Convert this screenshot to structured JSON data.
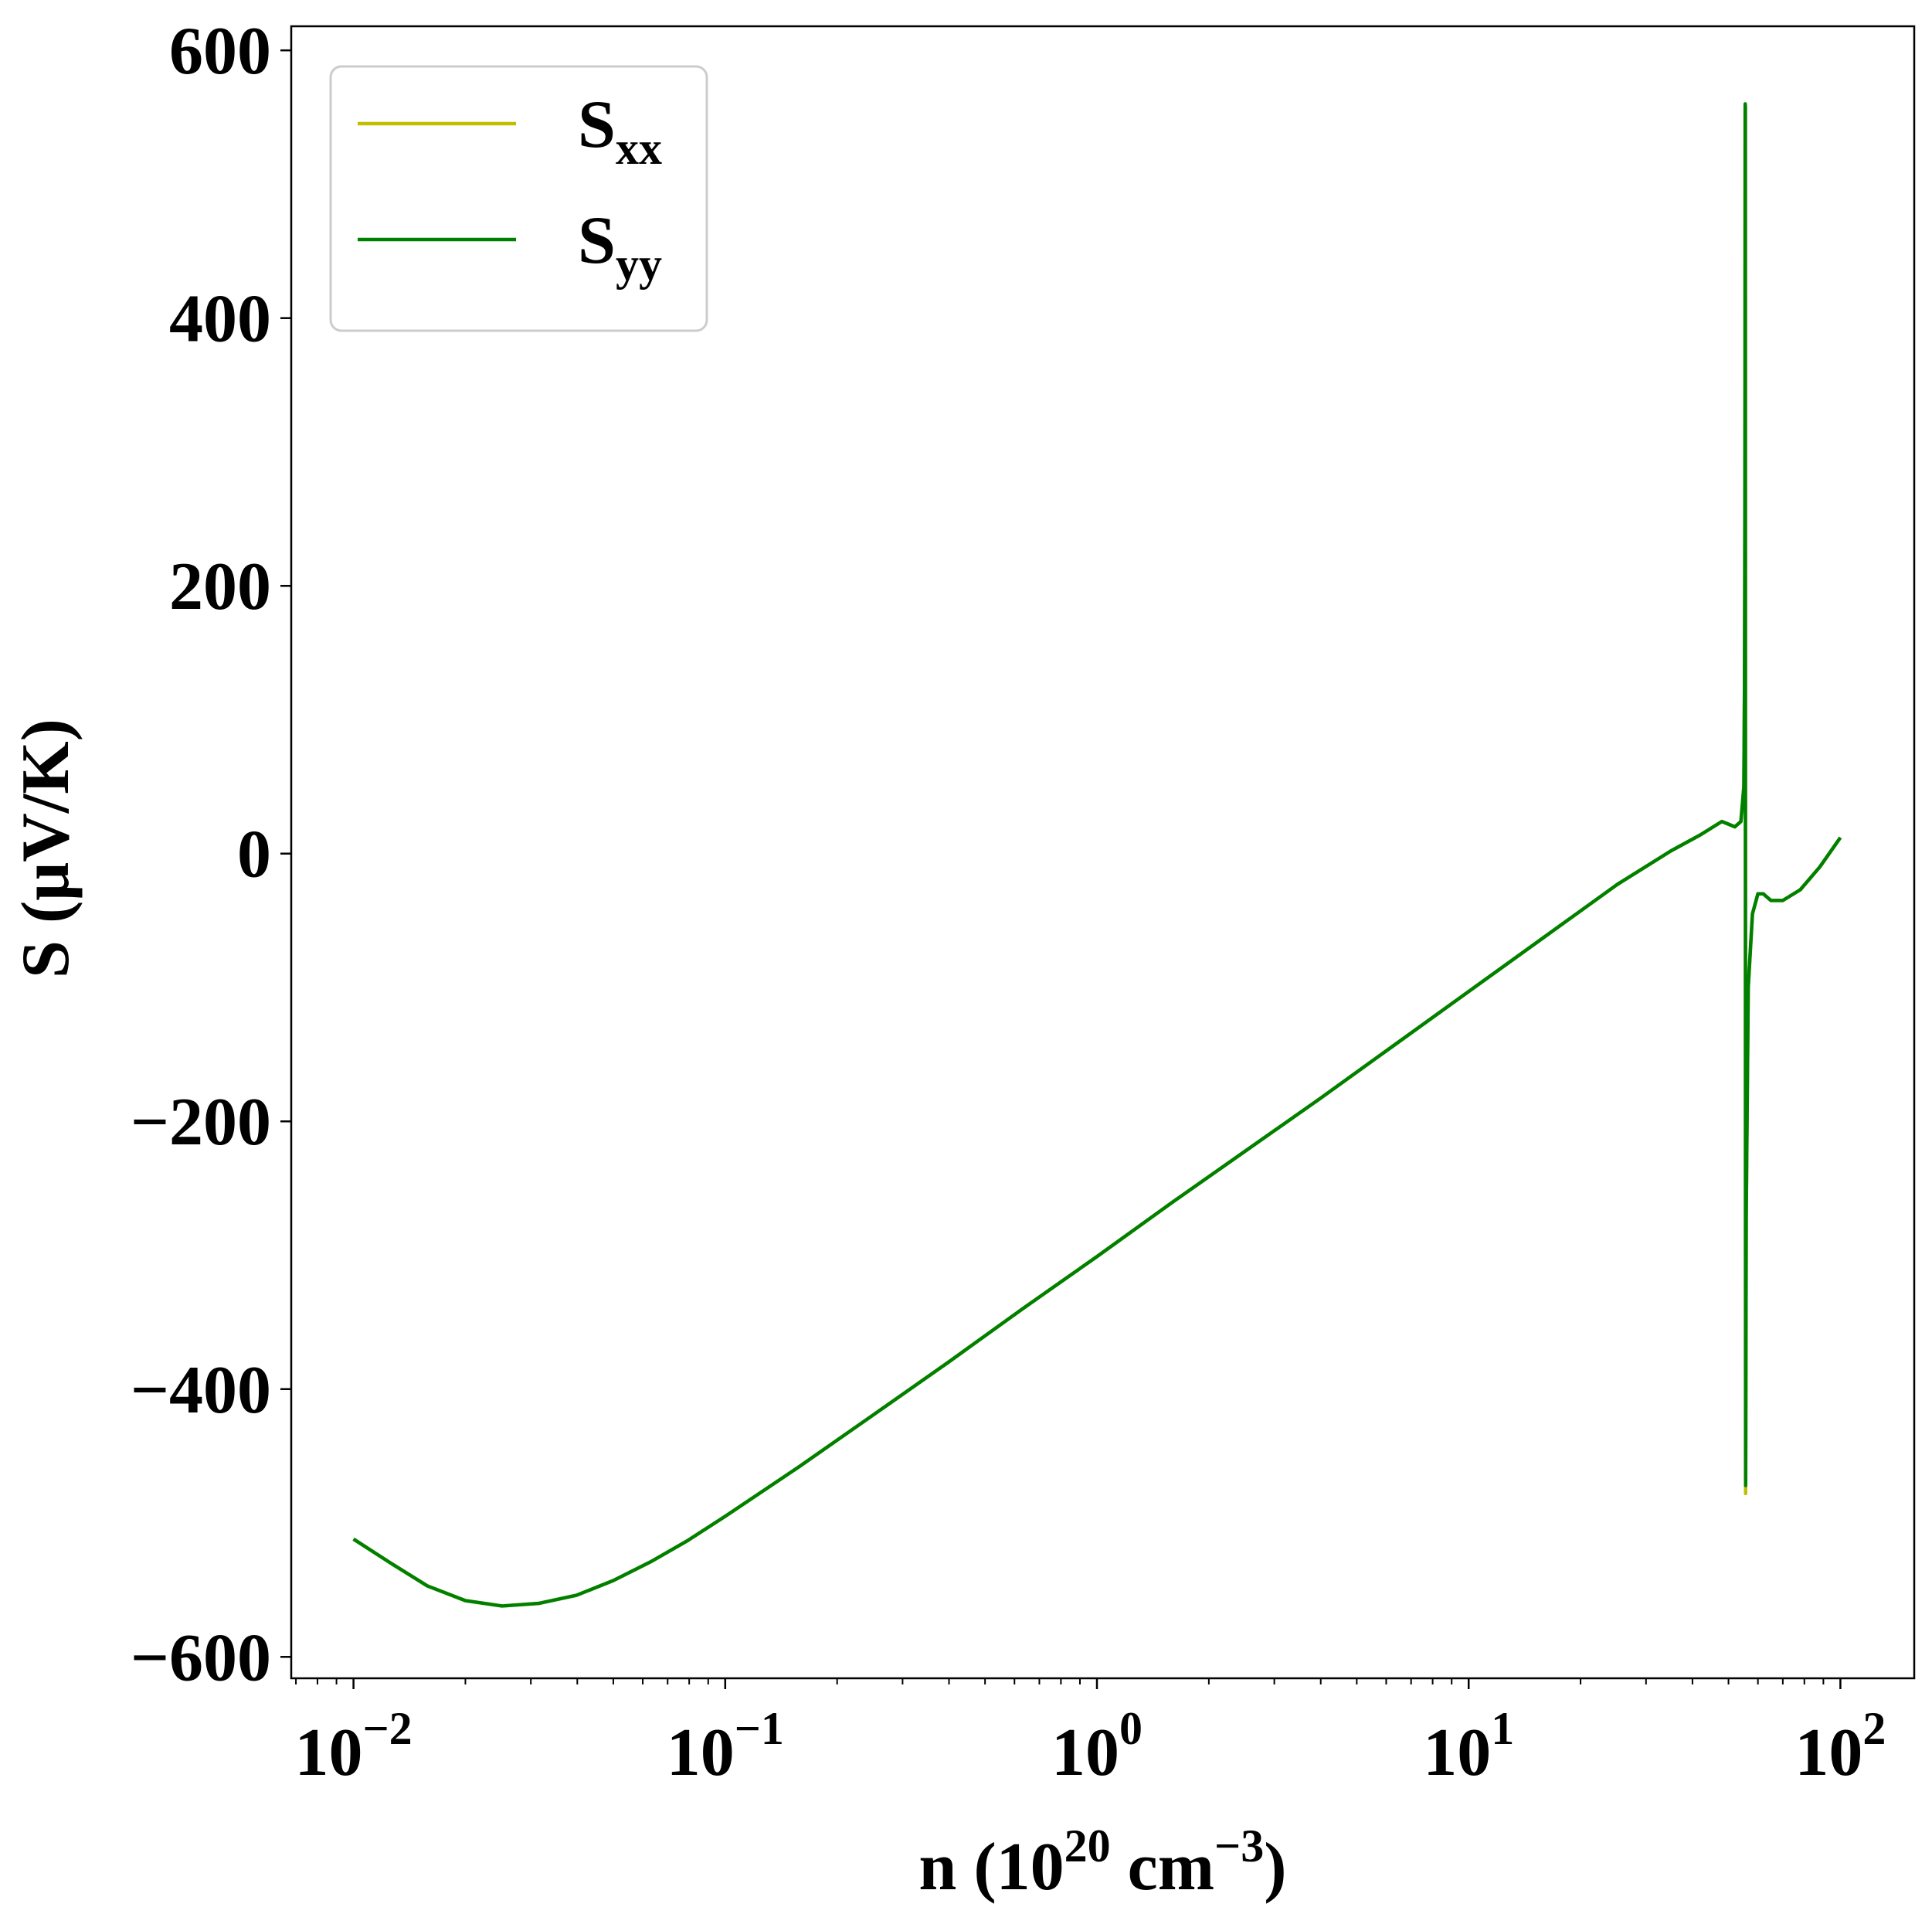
{
  "chart_data": {
    "type": "line",
    "title": "",
    "xscale": "log",
    "xlim": [
      0.0068,
      158
    ],
    "ylim": [
      -616,
      618
    ],
    "grid": false,
    "legend_position": "top-left",
    "xlabel": {
      "prefix": "n (10",
      "sup1": "20",
      "mid": " cm",
      "sup2": "−3",
      "suffix": ")"
    },
    "ylabel": "S (μV/K)",
    "xticks": [
      {
        "value": 0.01,
        "base": "10",
        "exp": "−2"
      },
      {
        "value": 0.1,
        "base": "10",
        "exp": "−1"
      },
      {
        "value": 1,
        "base": "10",
        "exp": "0"
      },
      {
        "value": 10,
        "base": "10",
        "exp": "1"
      },
      {
        "value": 100,
        "base": "10",
        "exp": "2"
      }
    ],
    "yticks": [
      {
        "value": 600,
        "label": "600"
      },
      {
        "value": 400,
        "label": "400"
      },
      {
        "value": 200,
        "label": "200"
      },
      {
        "value": 0,
        "label": "0"
      },
      {
        "value": -200,
        "label": "−200"
      },
      {
        "value": -400,
        "label": "−400"
      },
      {
        "value": -600,
        "label": "−600"
      }
    ],
    "series": [
      {
        "name": "S",
        "subscript": "xx",
        "color": "#bfbf00",
        "x": [
          0.01,
          0.0126,
          0.0158,
          0.02,
          0.0251,
          0.0316,
          0.0398,
          0.05,
          0.063,
          0.0794,
          0.1,
          0.158,
          0.251,
          0.398,
          0.631,
          1,
          1.585,
          2.512,
          3.981,
          6.31,
          10,
          15.85,
          25.12,
          35,
          42,
          48,
          50,
          52,
          54,
          55,
          55.2,
          55.3,
          55.4,
          55.45,
          55.5,
          55.55,
          55.6,
          55.8,
          56.5,
          58,
          60,
          62,
          65,
          70,
          78,
          88,
          100
        ],
        "y": [
          -512,
          -530,
          -547,
          -558,
          -562,
          -560,
          -554,
          -543,
          -529,
          -513,
          -495,
          -458,
          -419,
          -380,
          -340,
          -301,
          -261,
          -222,
          -183,
          -143,
          -103,
          -63,
          -23,
          2,
          14,
          24,
          22,
          20,
          24,
          50,
          120,
          200,
          350,
          555,
          558,
          -200,
          -478,
          -270,
          -100,
          -45,
          -30,
          -30,
          -35,
          -35,
          -27,
          -10,
          12
        ]
      },
      {
        "name": "S",
        "subscript": "yy",
        "color": "#008000",
        "x": [
          0.01,
          0.0126,
          0.0158,
          0.02,
          0.0251,
          0.0316,
          0.0398,
          0.05,
          0.063,
          0.0794,
          0.1,
          0.158,
          0.251,
          0.398,
          0.631,
          1,
          1.585,
          2.512,
          3.981,
          6.31,
          10,
          15.85,
          25.12,
          35,
          42,
          48,
          50,
          52,
          54,
          55,
          55.2,
          55.3,
          55.4,
          55.45,
          55.5,
          55.55,
          55.6,
          55.8,
          56.5,
          58,
          60,
          62,
          65,
          70,
          78,
          88,
          100
        ],
        "y": [
          -512,
          -530,
          -547,
          -558,
          -562,
          -560,
          -554,
          -543,
          -529,
          -513,
          -495,
          -458,
          -419,
          -380,
          -340,
          -301,
          -261,
          -222,
          -183,
          -143,
          -103,
          -63,
          -23,
          2,
          14,
          24,
          22,
          20,
          24,
          50,
          120,
          200,
          350,
          560,
          558,
          -200,
          -472,
          -270,
          -100,
          -45,
          -30,
          -30,
          -35,
          -35,
          -27,
          -10,
          12
        ]
      }
    ]
  }
}
